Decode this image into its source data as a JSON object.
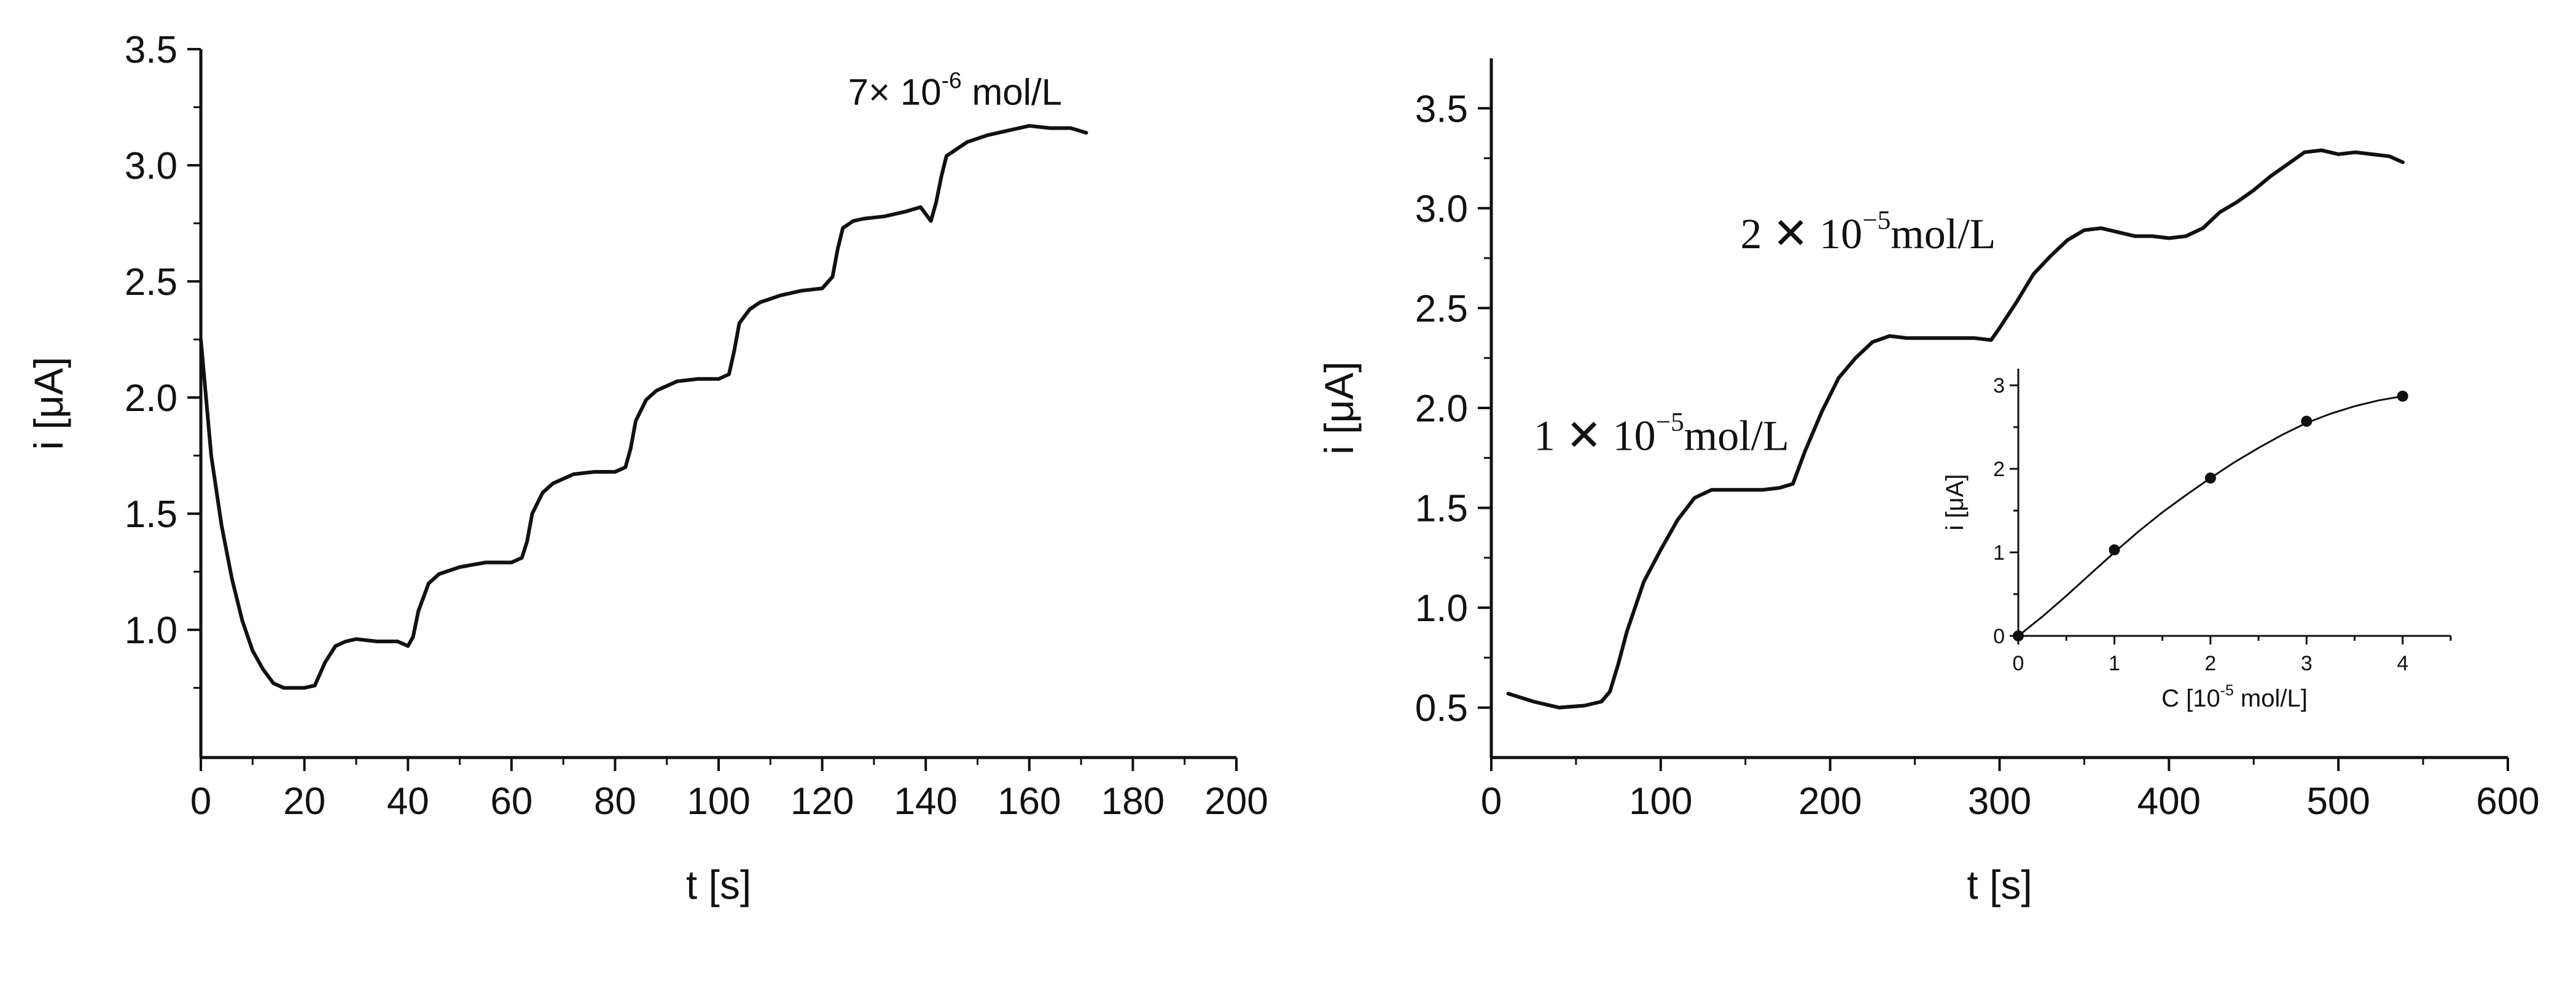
{
  "chart_data": [
    {
      "id": "left",
      "type": "line",
      "title": "",
      "xlabel": "t [s]",
      "ylabel": "i [μA]",
      "xlim": [
        0,
        200
      ],
      "ylim": [
        0.45,
        3.5
      ],
      "xticks": [
        0,
        20,
        40,
        60,
        80,
        100,
        120,
        140,
        160,
        180,
        200
      ],
      "yticks": [
        1.0,
        1.5,
        2.0,
        2.5,
        3.0,
        3.5
      ],
      "ytick_labels": [
        "1.0",
        "1.5",
        "2.0",
        "2.5",
        "3.0",
        "3.5"
      ],
      "grid": false,
      "annotations": [
        {
          "text_main": "7× 10",
          "text_sup": "-6",
          "text_tail": " mol/L",
          "x": 125,
          "y": 3.26
        }
      ],
      "series": [
        {
          "x": [
            0,
            2,
            4,
            6,
            8,
            10,
            12,
            14,
            16,
            18,
            20,
            22,
            24,
            26,
            28,
            30,
            34,
            38,
            40,
            41,
            42,
            44,
            46,
            50,
            55,
            60,
            62,
            63,
            64,
            66,
            68,
            72,
            76,
            80,
            82,
            83,
            84,
            86,
            88,
            92,
            96,
            100,
            102,
            103,
            104,
            106,
            108,
            112,
            116,
            120,
            122,
            123,
            124,
            126,
            128,
            132,
            136,
            139,
            140,
            141,
            142,
            143,
            144,
            148,
            152,
            156,
            160,
            164,
            168,
            171
          ],
          "y": [
            2.25,
            1.75,
            1.45,
            1.22,
            1.04,
            0.91,
            0.83,
            0.77,
            0.75,
            0.75,
            0.75,
            0.76,
            0.86,
            0.93,
            0.95,
            0.96,
            0.95,
            0.95,
            0.93,
            0.97,
            1.08,
            1.2,
            1.24,
            1.27,
            1.29,
            1.29,
            1.31,
            1.38,
            1.5,
            1.59,
            1.63,
            1.67,
            1.68,
            1.68,
            1.7,
            1.78,
            1.9,
            1.99,
            2.03,
            2.07,
            2.08,
            2.08,
            2.1,
            2.2,
            2.32,
            2.38,
            2.41,
            2.44,
            2.46,
            2.47,
            2.52,
            2.64,
            2.73,
            2.76,
            2.77,
            2.78,
            2.8,
            2.82,
            2.79,
            2.76,
            2.84,
            2.95,
            3.04,
            3.1,
            3.13,
            3.15,
            3.17,
            3.16,
            3.16,
            3.14
          ]
        }
      ]
    },
    {
      "id": "right",
      "type": "line",
      "title": "",
      "xlabel": "t [s]",
      "ylabel": "i [μA]",
      "xlim": [
        0,
        600
      ],
      "ylim": [
        0.25,
        3.75
      ],
      "xticks": [
        0,
        100,
        200,
        300,
        400,
        500,
        600
      ],
      "yticks": [
        0.5,
        1.0,
        1.5,
        2.0,
        2.5,
        3.0,
        3.5
      ],
      "ytick_labels": [
        "0.5",
        "1.0",
        "1.5",
        "2.0",
        "2.5",
        "3.0",
        "3.5"
      ],
      "grid": false,
      "annotations": [
        {
          "text_main": "1 ✕ 10",
          "text_sup": "−5",
          "text_tail": "mol/L",
          "x": 25,
          "y": 1.79
        },
        {
          "text_main": "2 ✕ 10",
          "text_sup": "−5",
          "text_tail": "mol/L",
          "x": 147,
          "y": 2.8
        }
      ],
      "series": [
        {
          "x": [
            10,
            25,
            40,
            55,
            65,
            70,
            75,
            80,
            90,
            100,
            110,
            120,
            130,
            140,
            150,
            160,
            170,
            178,
            185,
            195,
            205,
            215,
            225,
            235,
            245,
            255,
            270,
            285,
            295,
            300,
            310,
            320,
            330,
            340,
            350,
            360,
            370,
            380,
            390,
            400,
            410,
            420,
            430,
            440,
            450,
            460,
            470,
            480,
            490,
            500,
            510,
            520,
            530,
            538
          ],
          "y": [
            0.57,
            0.53,
            0.5,
            0.51,
            0.53,
            0.58,
            0.72,
            0.88,
            1.13,
            1.29,
            1.44,
            1.55,
            1.59,
            1.59,
            1.59,
            1.59,
            1.6,
            1.62,
            1.78,
            1.98,
            2.15,
            2.25,
            2.33,
            2.36,
            2.35,
            2.35,
            2.35,
            2.35,
            2.34,
            2.4,
            2.53,
            2.67,
            2.76,
            2.84,
            2.89,
            2.9,
            2.88,
            2.86,
            2.86,
            2.85,
            2.86,
            2.9,
            2.98,
            3.03,
            3.09,
            3.16,
            3.22,
            3.28,
            3.29,
            3.27,
            3.28,
            3.27,
            3.26,
            3.23
          ]
        }
      ],
      "inset": {
        "type": "scatter",
        "xlabel_main": "C [10",
        "xlabel_sup": "-5",
        "xlabel_tail": " mol/L]",
        "ylabel": "i [μA]",
        "xlim": [
          0,
          4.5
        ],
        "ylim": [
          0,
          3.2
        ],
        "xticks": [
          0,
          1,
          2,
          3,
          4
        ],
        "yticks": [
          0,
          1,
          2,
          3
        ],
        "points": {
          "x": [
            0,
            1,
            2,
            3,
            4
          ],
          "y": [
            0,
            1.03,
            1.89,
            2.57,
            2.87
          ]
        },
        "fit": {
          "x": [
            0,
            0.25,
            0.5,
            0.75,
            1,
            1.25,
            1.5,
            1.75,
            2,
            2.25,
            2.5,
            2.75,
            3,
            3.25,
            3.5,
            3.75,
            4
          ],
          "y": [
            0,
            0.23,
            0.48,
            0.74,
            1.0,
            1.25,
            1.48,
            1.69,
            1.89,
            2.08,
            2.25,
            2.41,
            2.55,
            2.66,
            2.75,
            2.82,
            2.87
          ]
        }
      }
    }
  ]
}
